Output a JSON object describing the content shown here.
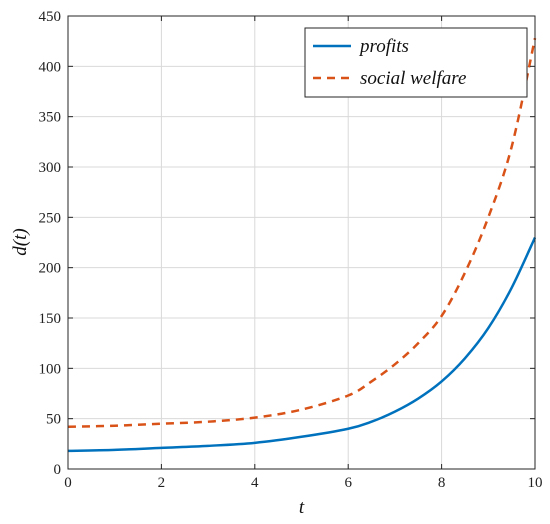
{
  "chart_data": {
    "type": "line",
    "title": "",
    "xlabel": "t",
    "ylabel": "d(t)",
    "xlim": [
      0,
      10
    ],
    "ylim": [
      0,
      450
    ],
    "xticks": [
      0,
      2,
      4,
      6,
      8,
      10
    ],
    "yticks": [
      0,
      50,
      100,
      150,
      200,
      250,
      300,
      350,
      400,
      450
    ],
    "grid": true,
    "legend_position": "top-right",
    "series": [
      {
        "name": "profits",
        "color": "#0072BD",
        "style": "solid",
        "x": [
          0,
          1,
          2,
          3,
          4,
          5,
          6,
          6.5,
          7,
          7.5,
          8,
          8.5,
          9,
          9.5,
          10
        ],
        "y": [
          18,
          19,
          21,
          23,
          26,
          32,
          40,
          47,
          57,
          70,
          87,
          110,
          140,
          180,
          230
        ]
      },
      {
        "name": "social welfare",
        "color": "#D95319",
        "style": "dashed",
        "x": [
          0,
          1,
          2,
          3,
          4,
          5,
          6,
          6.5,
          7,
          7.5,
          8,
          8.5,
          9,
          9.5,
          10
        ],
        "y": [
          42,
          43,
          45,
          47,
          51,
          59,
          73,
          87,
          104,
          125,
          152,
          195,
          250,
          320,
          428
        ]
      }
    ]
  }
}
